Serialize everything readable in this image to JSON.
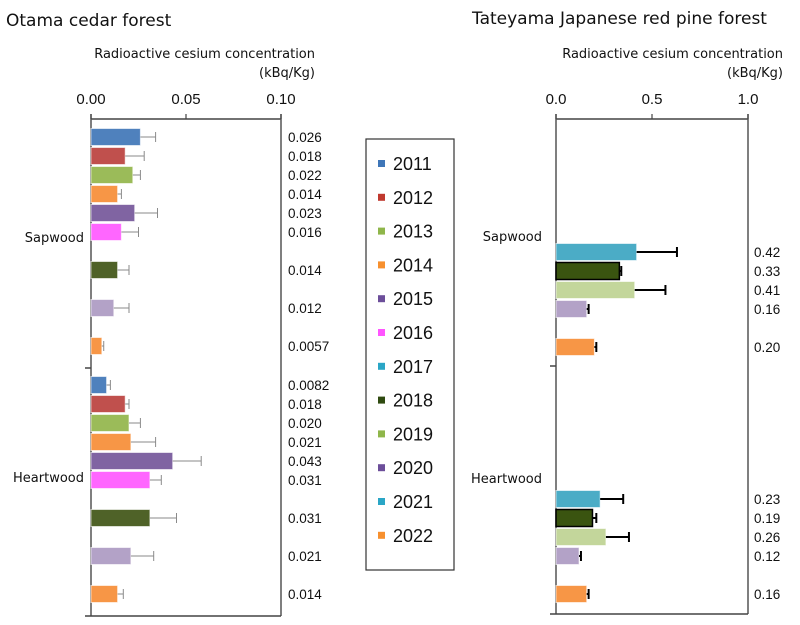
{
  "legend": {
    "items": [
      {
        "label": "2011",
        "color": "#3f76b8"
      },
      {
        "label": "2012",
        "color": "#c0392f"
      },
      {
        "label": "2013",
        "color": "#8fb64a"
      },
      {
        "label": "2014",
        "color": "#f7902e"
      },
      {
        "label": "2015",
        "color": "#6c4e9a"
      },
      {
        "label": "2016",
        "color": "#ff55ff"
      },
      {
        "label": "2017",
        "color": "#2aa6c6"
      },
      {
        "label": "2018",
        "color": "#2f4a10"
      },
      {
        "label": "2019",
        "color": "#8fb64a"
      },
      {
        "label": "2020",
        "color": "#6c4e9a"
      },
      {
        "label": "2021",
        "color": "#2aa6c6"
      },
      {
        "label": "2022",
        "color": "#f7902e"
      }
    ]
  },
  "chart_data": [
    {
      "type": "bar",
      "orientation": "horizontal",
      "title": "Otama cedar forest",
      "xlabel": "Radioactive cesium concentration",
      "xunit": "(kBq/Kg)",
      "xlim": [
        0,
        0.1
      ],
      "xticks": [
        "0.00",
        "0.05",
        "0.10"
      ],
      "error_bar_color": "#8a8a8a",
      "categories": [
        {
          "name": "Sapwood",
          "bars": [
            {
              "year": "2011",
              "value": 0.026,
              "error": 0.008,
              "label": "0.026",
              "color": "#4f81bd"
            },
            {
              "year": "2012",
              "value": 0.018,
              "error": 0.01,
              "label": "0.018",
              "color": "#c0504d"
            },
            {
              "year": "2013",
              "value": 0.022,
              "error": 0.004,
              "label": "0.022",
              "color": "#9bbb59"
            },
            {
              "year": "2014",
              "value": 0.014,
              "error": 0.002,
              "label": "0.014",
              "color": "#f79646"
            },
            {
              "year": "2015",
              "value": 0.023,
              "error": 0.012,
              "label": "0.023",
              "color": "#8064a2"
            },
            {
              "year": "2016",
              "value": 0.016,
              "error": 0.009,
              "label": "0.016",
              "color": "#ff66ff"
            },
            {
              "year": "2018",
              "value": 0.014,
              "error": 0.006,
              "label": "0.014",
              "color": "#4f6228"
            },
            {
              "year": "2020",
              "value": 0.012,
              "error": 0.008,
              "label": "0.012",
              "color": "#b3a2c7"
            },
            {
              "year": "2022",
              "value": 0.0057,
              "error": 0.001,
              "label": "0.0057",
              "color": "#f79646",
              "label_color": "#0000ff"
            }
          ]
        },
        {
          "name": "Heartwood",
          "bars": [
            {
              "year": "2011",
              "value": 0.0082,
              "error": 0.002,
              "label": "0.0082",
              "color": "#4f81bd"
            },
            {
              "year": "2012",
              "value": 0.018,
              "error": 0.002,
              "label": "0.018",
              "color": "#c0504d"
            },
            {
              "year": "2013",
              "value": 0.02,
              "error": 0.006,
              "label": "0.020",
              "color": "#9bbb59"
            },
            {
              "year": "2014",
              "value": 0.021,
              "error": 0.013,
              "label": "0.021",
              "color": "#f79646"
            },
            {
              "year": "2015",
              "value": 0.043,
              "error": 0.015,
              "label": "0.043",
              "color": "#8064a2"
            },
            {
              "year": "2016",
              "value": 0.031,
              "error": 0.006,
              "label": "0.031",
              "color": "#ff66ff"
            },
            {
              "year": "2018",
              "value": 0.031,
              "error": 0.014,
              "label": "0.031",
              "color": "#4f6228"
            },
            {
              "year": "2020",
              "value": 0.021,
              "error": 0.012,
              "label": "0.021",
              "color": "#b3a2c7"
            },
            {
              "year": "2022",
              "value": 0.014,
              "error": 0.003,
              "label": "0.014",
              "color": "#f79646",
              "label_color": "#0000ff"
            }
          ]
        }
      ]
    },
    {
      "type": "bar",
      "orientation": "horizontal",
      "title": "Tateyama Japanese red pine forest",
      "xlabel": "Radioactive cesium concentration",
      "xunit": "(kBq/Kg)",
      "xlim": [
        0,
        1.0
      ],
      "xticks": [
        "0.0",
        "0.5",
        "1.0"
      ],
      "error_bar_color": "#000000",
      "categories": [
        {
          "name": "Sapwood",
          "bars": [
            {
              "year": "2021",
              "value": 0.42,
              "error": 0.21,
              "label": "0.42",
              "color": "#4bacc6"
            },
            {
              "year": "2018",
              "value": 0.33,
              "error": 0.01,
              "label": "0.33",
              "color": "#3a5410",
              "border": "#000000"
            },
            {
              "year": "2019",
              "value": 0.41,
              "error": 0.16,
              "label": "0.41",
              "color": "#c3d69b"
            },
            {
              "year": "2020",
              "value": 0.16,
              "error": 0.01,
              "label": "0.16",
              "color": "#b3a2c7"
            },
            {
              "year": "2022",
              "value": 0.2,
              "error": 0.01,
              "label": "0.20",
              "color": "#f79646",
              "label_color": "#0000ff"
            }
          ]
        },
        {
          "name": "Heartwood",
          "bars": [
            {
              "year": "2021",
              "value": 0.23,
              "error": 0.12,
              "label": "0.23",
              "color": "#4bacc6"
            },
            {
              "year": "2018",
              "value": 0.19,
              "error": 0.02,
              "label": "0.19",
              "color": "#3a5410",
              "border": "#000000"
            },
            {
              "year": "2019",
              "value": 0.26,
              "error": 0.12,
              "label": "0.26",
              "color": "#c3d69b"
            },
            {
              "year": "2020",
              "value": 0.12,
              "error": 0.01,
              "label": "0.12",
              "color": "#b3a2c7"
            },
            {
              "year": "2022",
              "value": 0.16,
              "error": 0.01,
              "label": "0.16",
              "color": "#f79646",
              "label_color": "#0000ff"
            }
          ]
        }
      ]
    }
  ]
}
